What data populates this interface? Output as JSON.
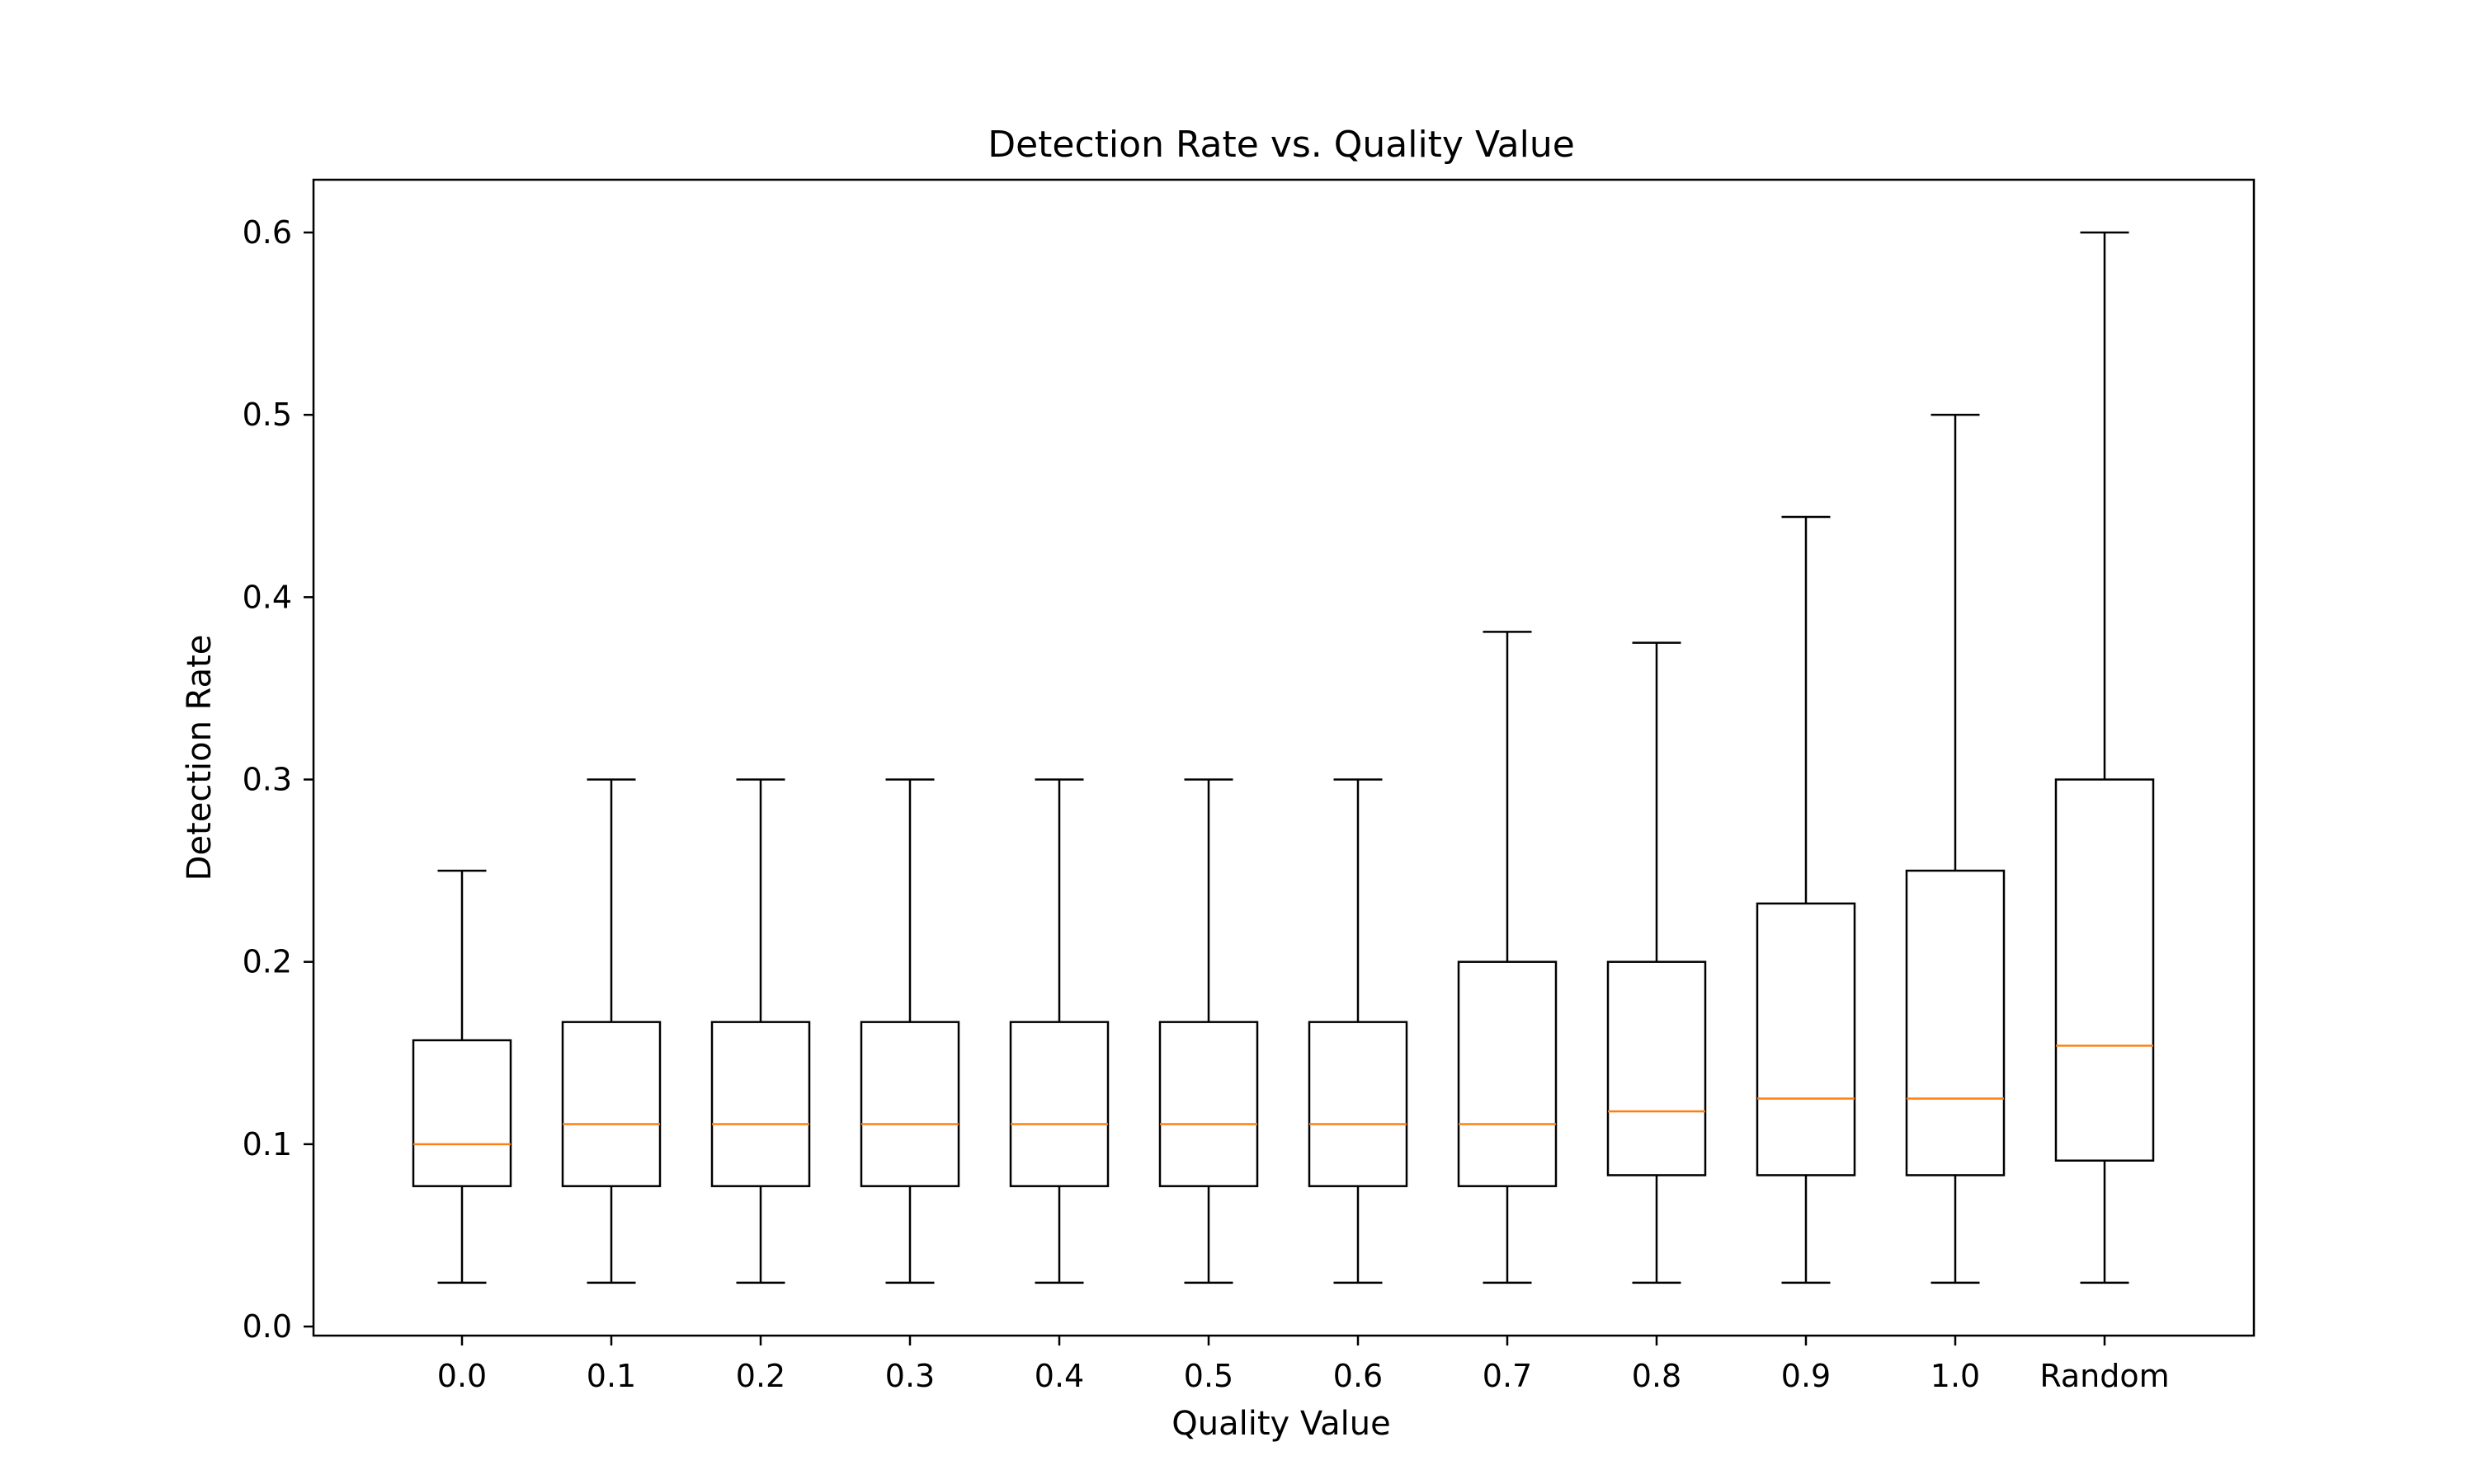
{
  "chart_data": {
    "type": "box",
    "title": "Detection Rate vs. Quality Value",
    "xlabel": "Quality Value",
    "ylabel": "Detection Rate",
    "ylim": [
      -0.008,
      0.63
    ],
    "yticks": [
      0.0,
      0.1,
      0.2,
      0.3,
      0.4,
      0.5,
      0.6
    ],
    "ytick_labels": [
      "0.0",
      "0.1",
      "0.2",
      "0.3",
      "0.4",
      "0.5",
      "0.6"
    ],
    "grid": false,
    "categories": [
      "0.0",
      "0.1",
      "0.2",
      "0.3",
      "0.4",
      "0.5",
      "0.6",
      "0.7",
      "0.8",
      "0.9",
      "1.0",
      "Random"
    ],
    "boxes": [
      {
        "whisker_low": 0.024,
        "q1": 0.077,
        "median": 0.1,
        "q3": 0.157,
        "whisker_high": 0.25
      },
      {
        "whisker_low": 0.024,
        "q1": 0.077,
        "median": 0.111,
        "q3": 0.167,
        "whisker_high": 0.3
      },
      {
        "whisker_low": 0.024,
        "q1": 0.077,
        "median": 0.111,
        "q3": 0.167,
        "whisker_high": 0.3
      },
      {
        "whisker_low": 0.024,
        "q1": 0.077,
        "median": 0.111,
        "q3": 0.167,
        "whisker_high": 0.3
      },
      {
        "whisker_low": 0.024,
        "q1": 0.077,
        "median": 0.111,
        "q3": 0.167,
        "whisker_high": 0.3
      },
      {
        "whisker_low": 0.024,
        "q1": 0.077,
        "median": 0.111,
        "q3": 0.167,
        "whisker_high": 0.3
      },
      {
        "whisker_low": 0.024,
        "q1": 0.077,
        "median": 0.111,
        "q3": 0.167,
        "whisker_high": 0.3
      },
      {
        "whisker_low": 0.024,
        "q1": 0.077,
        "median": 0.111,
        "q3": 0.2,
        "whisker_high": 0.381
      },
      {
        "whisker_low": 0.024,
        "q1": 0.083,
        "median": 0.118,
        "q3": 0.2,
        "whisker_high": 0.375
      },
      {
        "whisker_low": 0.024,
        "q1": 0.083,
        "median": 0.125,
        "q3": 0.232,
        "whisker_high": 0.444
      },
      {
        "whisker_low": 0.024,
        "q1": 0.083,
        "median": 0.125,
        "q3": 0.25,
        "whisker_high": 0.5
      },
      {
        "whisker_low": 0.024,
        "q1": 0.091,
        "median": 0.154,
        "q3": 0.3,
        "whisker_high": 0.6
      }
    ],
    "colors": {
      "box": "#000000",
      "median": "#ff7f0e",
      "background": "#ffffff"
    }
  }
}
